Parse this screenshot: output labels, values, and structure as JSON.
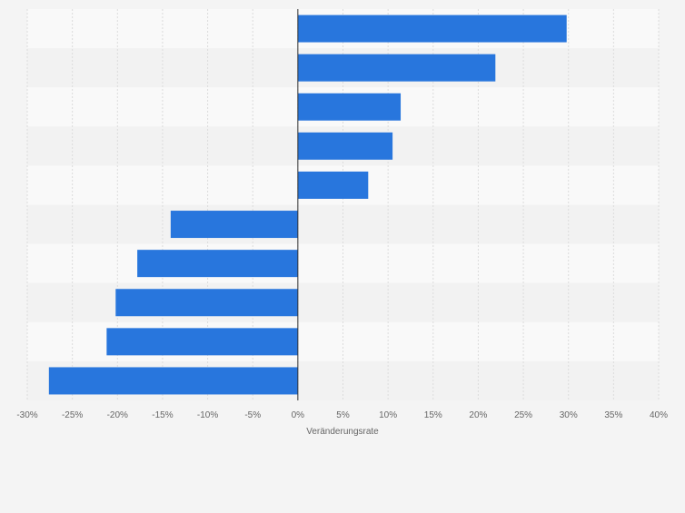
{
  "colors": {
    "bar": "#2876dd",
    "band_light": "#f9f9f9",
    "band_dark": "#f2f2f2",
    "grid": "#dcdcdc",
    "zero_line": "#333333",
    "tick_text": "#666666"
  },
  "chart_data": {
    "type": "bar",
    "orientation": "horizontal",
    "values": [
      29.8,
      21.9,
      11.4,
      10.5,
      7.8,
      -14.1,
      -17.8,
      -20.2,
      -21.2,
      -27.6
    ],
    "xlabel": "Veränderungsrate",
    "ylabel": "",
    "xlim": [
      -30,
      40
    ],
    "ticks": [
      "-30%",
      "-25%",
      "-20%",
      "-15%",
      "-10%",
      "-5%",
      "0%",
      "5%",
      "10%",
      "15%",
      "20%",
      "25%",
      "30%",
      "35%",
      "40%"
    ],
    "grid": true,
    "legend": "none"
  }
}
